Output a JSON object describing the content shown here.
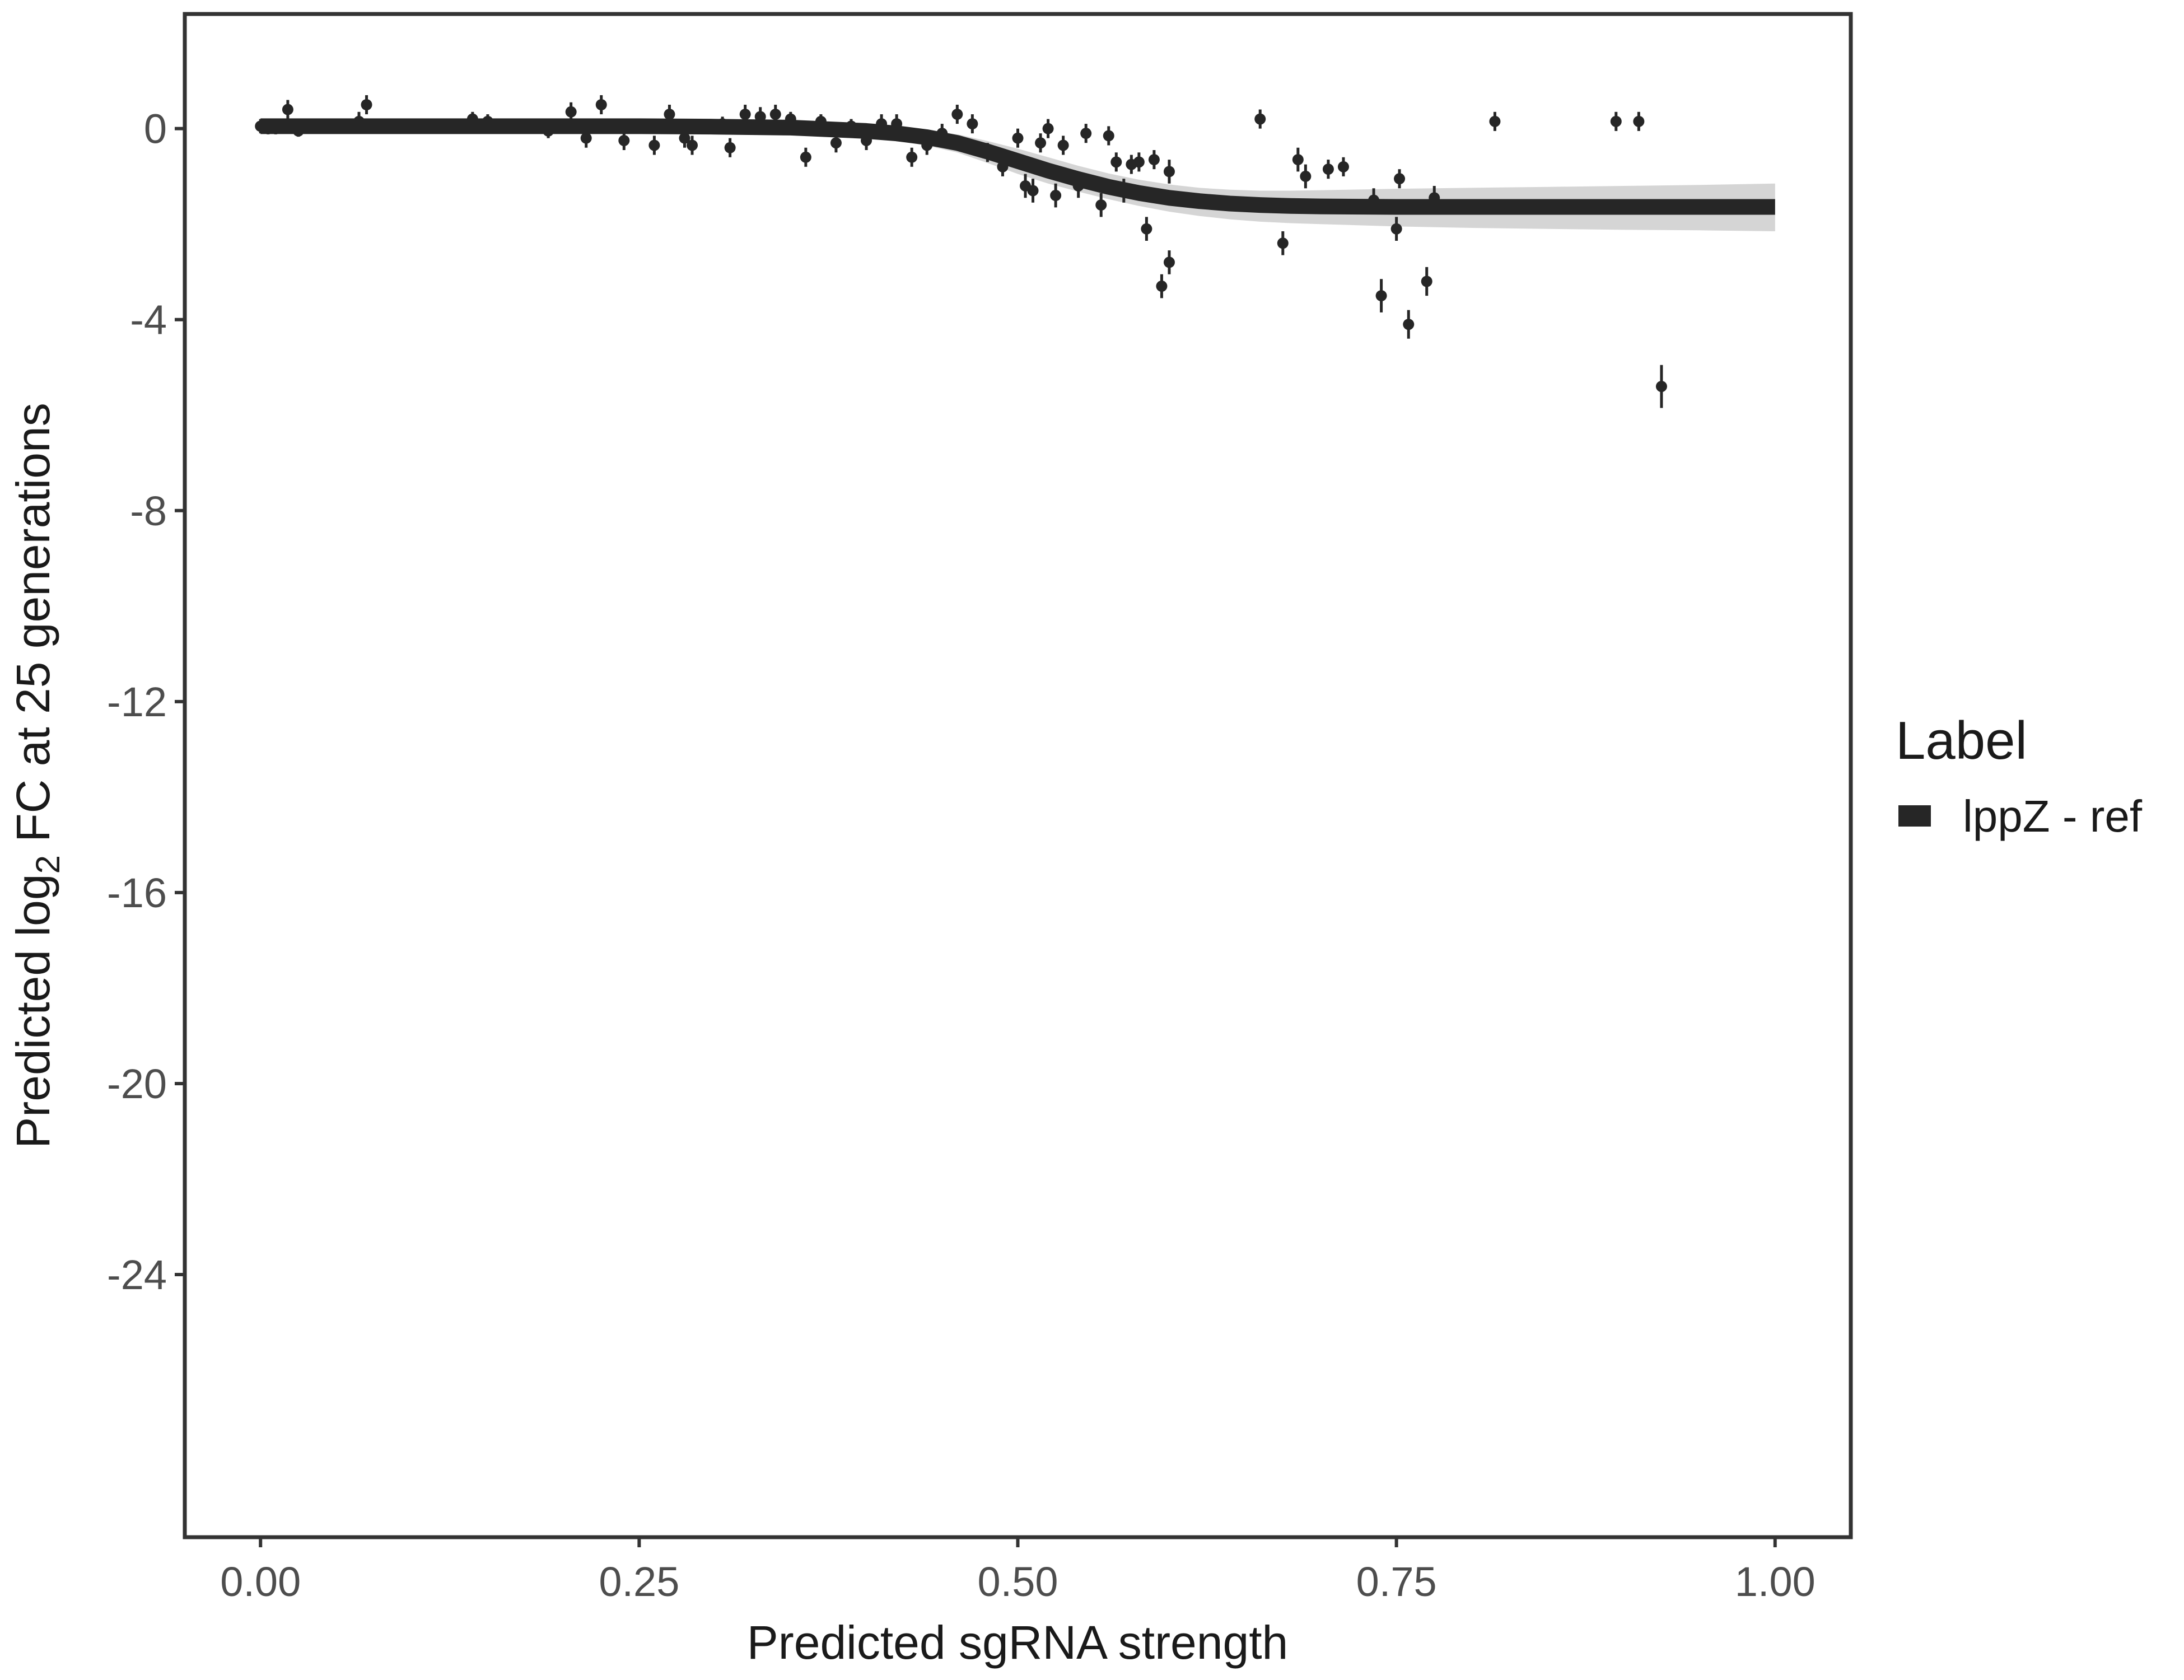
{
  "chart_data": {
    "type": "scatter",
    "xlabel": "Predicted sgRNA strength",
    "ylabel": {
      "prefix": "Predicted ",
      "log": "log",
      "log_subscript": "2",
      "suffix": " FC at 25 generations"
    },
    "xlim": [
      -0.05,
      1.05
    ],
    "ylim": [
      -29.5,
      2.4
    ],
    "xticks": [
      0,
      0.25,
      0.5,
      0.75,
      1
    ],
    "xtick_labels": [
      "0.00",
      "0.25",
      "0.50",
      "0.75",
      "1.00"
    ],
    "yticks": [
      0,
      -4,
      -8,
      -12,
      -16,
      -20,
      -24
    ],
    "ytick_labels": [
      "0",
      "-4",
      "-8",
      "-12",
      "-16",
      "-20",
      "-24"
    ],
    "grid": false,
    "legend": {
      "title": "Label",
      "position": "right",
      "entries": [
        {
          "label": "lppZ - ref",
          "color": "#262626"
        }
      ]
    },
    "fit_curve": {
      "name": "lppZ - ref",
      "x": [
        0,
        0.05,
        0.1,
        0.15,
        0.2,
        0.25,
        0.3,
        0.35,
        0.4,
        0.42,
        0.44,
        0.46,
        0.48,
        0.5,
        0.52,
        0.54,
        0.56,
        0.58,
        0.6,
        0.62,
        0.64,
        0.66,
        0.68,
        0.7,
        0.75,
        0.8,
        0.85,
        0.9,
        0.95,
        1
      ],
      "y": [
        0.05,
        0.05,
        0.05,
        0.05,
        0.05,
        0.05,
        0.04,
        0.02,
        -0.05,
        -0.1,
        -0.18,
        -0.3,
        -0.48,
        -0.68,
        -0.88,
        -1.06,
        -1.22,
        -1.35,
        -1.45,
        -1.52,
        -1.57,
        -1.6,
        -1.62,
        -1.63,
        -1.64,
        -1.64,
        -1.64,
        -1.64,
        -1.64,
        -1.64
      ],
      "band_lower": [
        -0.05,
        -0.05,
        -0.05,
        -0.05,
        -0.05,
        -0.05,
        -0.06,
        -0.09,
        -0.18,
        -0.25,
        -0.36,
        -0.5,
        -0.72,
        -0.95,
        -1.15,
        -1.32,
        -1.48,
        -1.62,
        -1.74,
        -1.83,
        -1.9,
        -1.95,
        -1.98,
        -2,
        -2.05,
        -2.08,
        -2.1,
        -2.12,
        -2.13,
        -2.15
      ],
      "band_upper": [
        0.15,
        0.15,
        0.15,
        0.15,
        0.15,
        0.15,
        0.14,
        0.12,
        0.06,
        0.03,
        -0.03,
        -0.12,
        -0.26,
        -0.42,
        -0.6,
        -0.78,
        -0.94,
        -1.07,
        -1.17,
        -1.24,
        -1.28,
        -1.3,
        -1.3,
        -1.29,
        -1.26,
        -1.24,
        -1.22,
        -1.2,
        -1.18,
        -1.15
      ]
    },
    "points": [
      {
        "x": 0.0,
        "y": 0.05,
        "err": 0.15
      },
      {
        "x": 0.005,
        "y": 0.0,
        "err": 0.12
      },
      {
        "x": 0.01,
        "y": 0.0,
        "err": 0.12
      },
      {
        "x": 0.018,
        "y": 0.4,
        "err": 0.2
      },
      {
        "x": 0.025,
        "y": -0.05,
        "err": 0.12
      },
      {
        "x": 0.04,
        "y": 0.05,
        "err": 0.12
      },
      {
        "x": 0.065,
        "y": 0.15,
        "err": 0.2
      },
      {
        "x": 0.07,
        "y": 0.5,
        "err": 0.2
      },
      {
        "x": 0.08,
        "y": 0.05,
        "err": 0.15
      },
      {
        "x": 0.1,
        "y": 0.05,
        "err": 0.15
      },
      {
        "x": 0.12,
        "y": 0.05,
        "err": 0.12
      },
      {
        "x": 0.14,
        "y": 0.2,
        "err": 0.15
      },
      {
        "x": 0.15,
        "y": 0.15,
        "err": 0.15
      },
      {
        "x": 0.19,
        "y": -0.05,
        "err": 0.15
      },
      {
        "x": 0.205,
        "y": 0.35,
        "err": 0.2
      },
      {
        "x": 0.215,
        "y": -0.2,
        "err": 0.2
      },
      {
        "x": 0.225,
        "y": 0.5,
        "err": 0.2
      },
      {
        "x": 0.24,
        "y": -0.25,
        "err": 0.2
      },
      {
        "x": 0.26,
        "y": -0.35,
        "err": 0.2
      },
      {
        "x": 0.27,
        "y": 0.3,
        "err": 0.2
      },
      {
        "x": 0.28,
        "y": -0.2,
        "err": 0.2
      },
      {
        "x": 0.285,
        "y": -0.35,
        "err": 0.2
      },
      {
        "x": 0.305,
        "y": 0.1,
        "err": 0.15
      },
      {
        "x": 0.31,
        "y": -0.4,
        "err": 0.2
      },
      {
        "x": 0.32,
        "y": 0.3,
        "err": 0.2
      },
      {
        "x": 0.33,
        "y": 0.25,
        "err": 0.2
      },
      {
        "x": 0.34,
        "y": 0.3,
        "err": 0.2
      },
      {
        "x": 0.35,
        "y": 0.2,
        "err": 0.15
      },
      {
        "x": 0.36,
        "y": -0.6,
        "err": 0.2
      },
      {
        "x": 0.37,
        "y": 0.15,
        "err": 0.15
      },
      {
        "x": 0.38,
        "y": -0.3,
        "err": 0.2
      },
      {
        "x": 0.39,
        "y": 0.05,
        "err": 0.15
      },
      {
        "x": 0.4,
        "y": -0.25,
        "err": 0.2
      },
      {
        "x": 0.41,
        "y": 0.1,
        "err": 0.2
      },
      {
        "x": 0.42,
        "y": 0.1,
        "err": 0.2
      },
      {
        "x": 0.43,
        "y": -0.6,
        "err": 0.2
      },
      {
        "x": 0.44,
        "y": -0.35,
        "err": 0.2
      },
      {
        "x": 0.45,
        "y": -0.1,
        "err": 0.2
      },
      {
        "x": 0.46,
        "y": 0.3,
        "err": 0.2
      },
      {
        "x": 0.47,
        "y": 0.1,
        "err": 0.2
      },
      {
        "x": 0.48,
        "y": -0.5,
        "err": 0.2
      },
      {
        "x": 0.49,
        "y": -0.8,
        "err": 0.2
      },
      {
        "x": 0.5,
        "y": -0.2,
        "err": 0.2
      },
      {
        "x": 0.505,
        "y": -1.2,
        "err": 0.25
      },
      {
        "x": 0.51,
        "y": -1.3,
        "err": 0.25
      },
      {
        "x": 0.515,
        "y": -0.3,
        "err": 0.2
      },
      {
        "x": 0.52,
        "y": 0.0,
        "err": 0.2
      },
      {
        "x": 0.525,
        "y": -1.4,
        "err": 0.25
      },
      {
        "x": 0.53,
        "y": -0.35,
        "err": 0.2
      },
      {
        "x": 0.54,
        "y": -1.2,
        "err": 0.25
      },
      {
        "x": 0.545,
        "y": -0.1,
        "err": 0.2
      },
      {
        "x": 0.555,
        "y": -1.6,
        "err": 0.25
      },
      {
        "x": 0.56,
        "y": -0.15,
        "err": 0.2
      },
      {
        "x": 0.565,
        "y": -0.7,
        "err": 0.2
      },
      {
        "x": 0.57,
        "y": -1.3,
        "err": 0.25
      },
      {
        "x": 0.575,
        "y": -0.75,
        "err": 0.2
      },
      {
        "x": 0.58,
        "y": -0.7,
        "err": 0.2
      },
      {
        "x": 0.585,
        "y": -2.1,
        "err": 0.25
      },
      {
        "x": 0.59,
        "y": -0.65,
        "err": 0.2
      },
      {
        "x": 0.595,
        "y": -3.3,
        "err": 0.25
      },
      {
        "x": 0.6,
        "y": -2.8,
        "err": 0.25
      },
      {
        "x": 0.6,
        "y": -0.9,
        "err": 0.25
      },
      {
        "x": 0.66,
        "y": 0.2,
        "err": 0.2
      },
      {
        "x": 0.675,
        "y": -2.4,
        "err": 0.25
      },
      {
        "x": 0.685,
        "y": -0.65,
        "err": 0.25
      },
      {
        "x": 0.69,
        "y": -1.0,
        "err": 0.25
      },
      {
        "x": 0.705,
        "y": -0.85,
        "err": 0.2
      },
      {
        "x": 0.715,
        "y": -0.8,
        "err": 0.2
      },
      {
        "x": 0.735,
        "y": -1.5,
        "err": 0.25
      },
      {
        "x": 0.74,
        "y": -3.5,
        "err": 0.35
      },
      {
        "x": 0.75,
        "y": -2.1,
        "err": 0.25
      },
      {
        "x": 0.752,
        "y": -1.05,
        "err": 0.2
      },
      {
        "x": 0.758,
        "y": -4.1,
        "err": 0.3
      },
      {
        "x": 0.77,
        "y": -3.2,
        "err": 0.3
      },
      {
        "x": 0.775,
        "y": -1.45,
        "err": 0.25
      },
      {
        "x": 0.815,
        "y": 0.15,
        "err": 0.2
      },
      {
        "x": 0.895,
        "y": 0.15,
        "err": 0.2
      },
      {
        "x": 0.91,
        "y": 0.15,
        "err": 0.2
      },
      {
        "x": 0.925,
        "y": -5.4,
        "err": 0.45
      }
    ]
  }
}
